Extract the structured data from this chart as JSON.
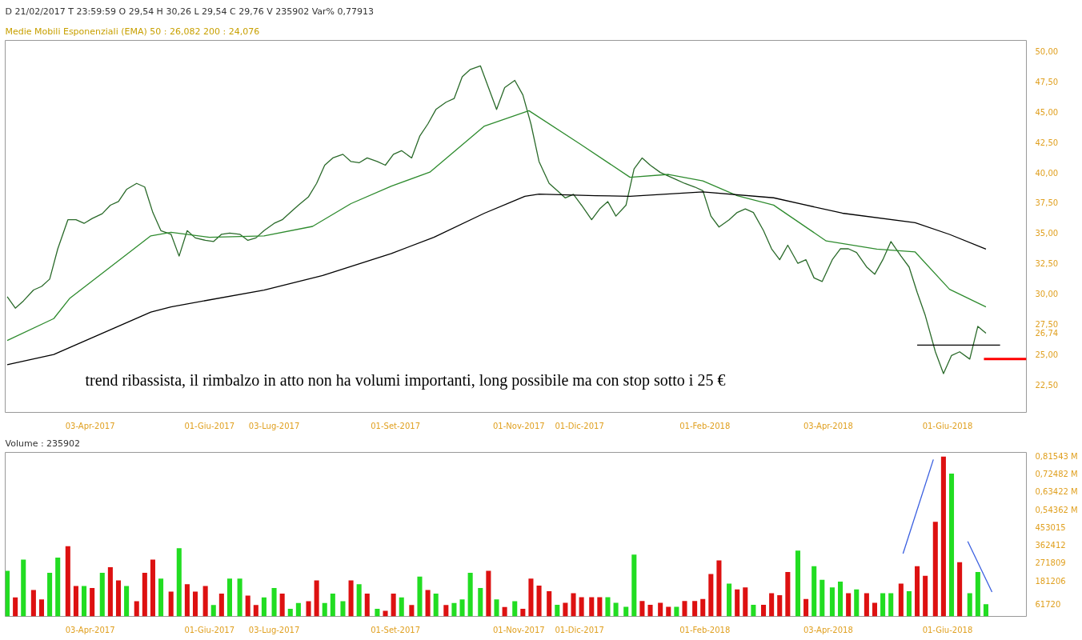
{
  "chart_data": [
    {
      "type": "line",
      "title": "D 21/02/2017  T 23:59:59  O 29,54  H 30,26  L 29,54  C 29,76  V 235902  Var% 0,77913",
      "subtitle": "Medie Mobili Esponenziali (EMA)     50 :  26,082     200 :  24,076",
      "x": [
        "2017-02-21",
        "2017-02-25",
        "2017-03-01",
        "2017-03-06",
        "2017-03-10",
        "2017-03-14",
        "2017-03-18",
        "2017-03-23",
        "2017-03-27",
        "2017-03-31",
        "2017-04-04",
        "2017-04-09",
        "2017-04-13",
        "2017-04-17",
        "2017-04-21",
        "2017-04-26",
        "2017-04-30",
        "2017-05-04",
        "2017-05-08",
        "2017-05-13",
        "2017-05-17",
        "2017-05-21",
        "2017-05-25",
        "2017-05-30",
        "2017-06-03",
        "2017-06-07",
        "2017-06-11",
        "2017-06-16",
        "2017-06-20",
        "2017-06-24",
        "2017-06-28",
        "2017-07-03",
        "2017-07-07",
        "2017-07-11",
        "2017-07-15",
        "2017-07-20",
        "2017-07-24",
        "2017-07-28",
        "2017-08-01",
        "2017-08-06",
        "2017-08-10",
        "2017-08-14",
        "2017-08-18",
        "2017-08-23",
        "2017-08-27",
        "2017-08-31",
        "2017-09-04",
        "2017-09-09",
        "2017-09-13",
        "2017-09-17",
        "2017-09-21",
        "2017-09-26",
        "2017-09-30",
        "2017-10-04",
        "2017-10-08",
        "2017-10-13",
        "2017-10-17",
        "2017-10-21",
        "2017-10-25",
        "2017-10-30",
        "2017-11-03",
        "2017-11-07",
        "2017-11-11",
        "2017-11-16",
        "2017-11-20",
        "2017-11-24",
        "2017-11-28",
        "2017-12-02",
        "2017-12-07",
        "2017-12-11",
        "2017-12-15",
        "2017-12-19",
        "2017-12-24",
        "2017-12-28",
        "2018-01-01",
        "2018-01-05",
        "2018-01-10",
        "2018-01-14",
        "2018-01-18",
        "2018-01-22",
        "2018-01-27",
        "2018-01-31",
        "2018-02-04",
        "2018-02-08",
        "2018-02-13",
        "2018-02-17",
        "2018-02-21",
        "2018-02-25",
        "2018-03-02",
        "2018-03-06",
        "2018-03-10",
        "2018-03-14",
        "2018-03-19",
        "2018-03-23",
        "2018-03-27",
        "2018-03-31",
        "2018-04-05",
        "2018-04-09",
        "2018-04-13",
        "2018-04-17",
        "2018-04-22",
        "2018-04-26",
        "2018-04-30",
        "2018-05-04",
        "2018-05-09",
        "2018-05-13",
        "2018-05-17",
        "2018-05-21",
        "2018-05-26",
        "2018-05-30",
        "2018-06-03",
        "2018-06-07",
        "2018-06-12",
        "2018-06-16",
        "2018-06-20"
      ],
      "xlim": [
        "2017-02-20",
        "2018-07-10"
      ],
      "xticks": [
        {
          "value": "2017-04-03",
          "label": "03-Apr-2017"
        },
        {
          "value": "2017-06-01",
          "label": "01-Giu-2017"
        },
        {
          "value": "2017-07-03",
          "label": "03-Lug-2017"
        },
        {
          "value": "2017-09-01",
          "label": "01-Set-2017"
        },
        {
          "value": "2017-11-01",
          "label": "01-Nov-2017"
        },
        {
          "value": "2017-12-01",
          "label": "01-Dic-2017"
        },
        {
          "value": "2018-02-01",
          "label": "01-Feb-2018"
        },
        {
          "value": "2018-04-03",
          "label": "03-Apr-2018"
        },
        {
          "value": "2018-06-01",
          "label": "01-Giu-2018"
        }
      ],
      "ylim": [
        20.2,
        50.9
      ],
      "yticks": [
        {
          "value": 22.5,
          "label": "22,50"
        },
        {
          "value": 25,
          "label": "25,00"
        },
        {
          "value": 26.74,
          "label": "26,74"
        },
        {
          "value": 27.5,
          "label": "27,50"
        },
        {
          "value": 30,
          "label": "30,00"
        },
        {
          "value": 32.5,
          "label": "32,50"
        },
        {
          "value": 35,
          "label": "35,00"
        },
        {
          "value": 37.5,
          "label": "37,50"
        },
        {
          "value": 40,
          "label": "40,00"
        },
        {
          "value": 42.5,
          "label": "42,50"
        },
        {
          "value": 45,
          "label": "45,00"
        },
        {
          "value": 47.5,
          "label": "47,50"
        },
        {
          "value": 50,
          "label": "50,00"
        }
      ],
      "series": [
        {
          "color": "#2a6a2a",
          "values": [
            29.75,
            28.8,
            29.4,
            30.3,
            30.6,
            31.2,
            33.7,
            36.1,
            36.1,
            35.8,
            36.2,
            36.6,
            37.3,
            37.6,
            38.6,
            39.1,
            38.8,
            36.7,
            35.2,
            34.9,
            33.1,
            35.2,
            34.6,
            34.4,
            34.3,
            34.9,
            35.0,
            34.9,
            34.4,
            34.6,
            35.2,
            35.8,
            36.1,
            36.7,
            37.3,
            38.0,
            39.1,
            40.6,
            41.2,
            41.5,
            40.9,
            40.8,
            41.2,
            40.9,
            40.6,
            41.5,
            41.8,
            41.2,
            43.0,
            44.0,
            45.2,
            45.8,
            46.1,
            47.9,
            48.5,
            48.8,
            47.0,
            45.2,
            47.0,
            47.6,
            46.4,
            44.0,
            40.9,
            39.1,
            38.5,
            37.9,
            38.2,
            37.3,
            36.1,
            37.0,
            37.6,
            36.4,
            37.3,
            40.3,
            41.2,
            40.6,
            40.0,
            39.7,
            39.4,
            39.1,
            38.8,
            38.5,
            36.4,
            35.5,
            36.1,
            36.7,
            37.0,
            36.7,
            35.2,
            33.7,
            32.8,
            34.0,
            32.5,
            32.8,
            31.3,
            31.0,
            32.8,
            33.7,
            33.7,
            33.4,
            32.2,
            31.6,
            32.8,
            34.3,
            33.1,
            32.2,
            30.1,
            28.2,
            25.2,
            23.4,
            24.9,
            25.2,
            24.6,
            27.3,
            26.74
          ]
        },
        {
          "color": "#2e8b2e",
          "x": [
            "2017-02-21",
            "2017-03-16",
            "2017-03-24",
            "2017-05-03",
            "2017-05-13",
            "2017-06-01",
            "2017-06-28",
            "2017-07-22",
            "2017-08-10",
            "2017-08-30",
            "2017-09-18",
            "2017-10-15",
            "2017-11-06",
            "2017-12-01",
            "2017-12-26",
            "2018-01-14",
            "2018-01-31",
            "2018-02-17",
            "2018-03-07",
            "2018-04-02",
            "2018-04-27",
            "2018-05-16",
            "2018-06-02",
            "2018-06-20"
          ],
          "values": [
            26.13,
            27.94,
            29.63,
            34.77,
            35.07,
            34.65,
            34.77,
            35.55,
            37.43,
            38.88,
            40.03,
            43.83,
            45.1,
            42.38,
            39.6,
            39.84,
            39.3,
            38.09,
            37.31,
            34.35,
            33.68,
            33.44,
            30.36,
            28.91
          ]
        },
        {
          "color": "#000000",
          "x": [
            "2017-02-21",
            "2017-03-16",
            "2017-05-03",
            "2017-05-13",
            "2017-06-28",
            "2017-07-27",
            "2017-08-30",
            "2017-09-20",
            "2017-10-15",
            "2017-11-04",
            "2017-11-11",
            "2017-12-09",
            "2017-12-26",
            "2018-01-31",
            "2018-03-07",
            "2018-04-10",
            "2018-05-16",
            "2018-06-02",
            "2018-06-20"
          ],
          "values": [
            24.13,
            24.98,
            28.48,
            28.91,
            30.3,
            31.5,
            33.32,
            34.65,
            36.64,
            38.03,
            38.21,
            38.09,
            38.03,
            38.4,
            37.91,
            36.64,
            35.86,
            34.89,
            33.68
          ]
        },
        {
          "color": "#000000",
          "x": [
            "2018-05-17",
            "2018-06-27"
          ],
          "values": [
            25.76,
            25.76
          ]
        },
        {
          "color": "#ff0000",
          "x": [
            "2018-06-19",
            "2018-07-10"
          ],
          "values": [
            24.6,
            24.6
          ]
        }
      ],
      "annotations": [
        "trend ribassista, il rimbalzo in atto non ha volumi importanti, long possibile ma con stop sotto i 25 €"
      ]
    },
    {
      "type": "bar",
      "title": "Volume     :  235902",
      "x": [
        "2017-02-21",
        "2017-02-25",
        "2017-03-01",
        "2017-03-06",
        "2017-03-10",
        "2017-03-14",
        "2017-03-18",
        "2017-03-23",
        "2017-03-27",
        "2017-03-31",
        "2017-04-04",
        "2017-04-09",
        "2017-04-13",
        "2017-04-17",
        "2017-04-21",
        "2017-04-26",
        "2017-04-30",
        "2017-05-04",
        "2017-05-08",
        "2017-05-13",
        "2017-05-17",
        "2017-05-21",
        "2017-05-25",
        "2017-05-30",
        "2017-06-03",
        "2017-06-07",
        "2017-06-11",
        "2017-06-16",
        "2017-06-20",
        "2017-06-24",
        "2017-06-28",
        "2017-07-03",
        "2017-07-07",
        "2017-07-11",
        "2017-07-15",
        "2017-07-20",
        "2017-07-24",
        "2017-07-28",
        "2017-08-01",
        "2017-08-06",
        "2017-08-10",
        "2017-08-14",
        "2017-08-18",
        "2017-08-23",
        "2017-08-27",
        "2017-08-31",
        "2017-09-04",
        "2017-09-09",
        "2017-09-13",
        "2017-09-17",
        "2017-09-21",
        "2017-09-26",
        "2017-09-30",
        "2017-10-04",
        "2017-10-08",
        "2017-10-13",
        "2017-10-17",
        "2017-10-21",
        "2017-10-25",
        "2017-10-30",
        "2017-11-03",
        "2017-11-07",
        "2017-11-11",
        "2017-11-16",
        "2017-11-20",
        "2017-11-24",
        "2017-11-28",
        "2017-12-02",
        "2017-12-07",
        "2017-12-11",
        "2017-12-15",
        "2017-12-19",
        "2017-12-24",
        "2017-12-28",
        "2018-01-01",
        "2018-01-05",
        "2018-01-10",
        "2018-01-14",
        "2018-01-18",
        "2018-01-22",
        "2018-01-27",
        "2018-01-31",
        "2018-02-04",
        "2018-02-08",
        "2018-02-13",
        "2018-02-17",
        "2018-02-21",
        "2018-02-25",
        "2018-03-02",
        "2018-03-06",
        "2018-03-10",
        "2018-03-14",
        "2018-03-19",
        "2018-03-23",
        "2018-03-27",
        "2018-03-31",
        "2018-04-05",
        "2018-04-09",
        "2018-04-13",
        "2018-04-17",
        "2018-04-22",
        "2018-04-26",
        "2018-04-30",
        "2018-05-04",
        "2018-05-09",
        "2018-05-13",
        "2018-05-17",
        "2018-05-21",
        "2018-05-26",
        "2018-05-30",
        "2018-06-03",
        "2018-06-07",
        "2018-06-12",
        "2018-06-16",
        "2018-06-20"
      ],
      "xlim": [
        "2017-02-20",
        "2018-07-10"
      ],
      "xticks": [
        {
          "value": "2017-04-03",
          "label": "03-Apr-2017"
        },
        {
          "value": "2017-06-01",
          "label": "01-Giu-2017"
        },
        {
          "value": "2017-07-03",
          "label": "03-Lug-2017"
        },
        {
          "value": "2017-09-01",
          "label": "01-Set-2017"
        },
        {
          "value": "2017-11-01",
          "label": "01-Nov-2017"
        },
        {
          "value": "2017-12-01",
          "label": "01-Dic-2017"
        },
        {
          "value": "2018-02-01",
          "label": "01-Feb-2018"
        },
        {
          "value": "2018-04-03",
          "label": "03-Apr-2018"
        },
        {
          "value": "2018-06-01",
          "label": "01-Giu-2018"
        }
      ],
      "ylim": [
        0,
        836000
      ],
      "yticks": [
        {
          "value": 61720,
          "label": "61720"
        },
        181206,
        271809,
        362412,
        453015,
        {
          "value": 543618,
          "label": "0,54362 M"
        },
        {
          "value": 634221,
          "label": "0,63422 M"
        },
        {
          "value": 724824,
          "label": "0,72482 M"
        },
        {
          "value": 815427,
          "label": "0,81543 M"
        }
      ],
      "series": [
        {
          "type": "bar",
          "values": [
            232000,
            97000,
            290000,
            135000,
            87000,
            222000,
            300000,
            358000,
            155000,
            155000,
            145000,
            222000,
            251000,
            184000,
            155000,
            77000,
            222000,
            290000,
            193000,
            126000,
            348000,
            164000,
            126000,
            155000,
            58000,
            116000,
            193000,
            193000,
            106000,
            58000,
            97000,
            145000,
            116000,
            39000,
            68000,
            77000,
            184000,
            68000,
            116000,
            77000,
            184000,
            164000,
            116000,
            39000,
            29000,
            116000,
            97000,
            58000,
            203000,
            135000,
            116000,
            58000,
            68000,
            87000,
            222000,
            145000,
            232000,
            87000,
            48000,
            77000,
            39000,
            193000,
            157000,
            128000,
            59000,
            69000,
            118000,
            98000,
            98000,
            98000,
            98000,
            69000,
            49000,
            315000,
            79000,
            59000,
            69000,
            49000,
            49000,
            79000,
            79000,
            89000,
            216000,
            285000,
            167000,
            138000,
            148000,
            59000,
            59000,
            118000,
            108000,
            226000,
            335000,
            89000,
            256000,
            187000,
            148000,
            177000,
            118000,
            138000,
            118000,
            69000,
            118000,
            118000,
            167000,
            128000,
            256000,
            207000,
            482000,
            815000,
            728000,
            276000,
            118000,
            226000,
            61720
          ],
          "colors": [
            "#22dd22",
            "#dd1111",
            "#22dd22",
            "#dd1111",
            "#dd1111",
            "#22dd22",
            "#22dd22",
            "#dd1111",
            "#dd1111",
            "#22dd22",
            "#dd1111",
            "#22dd22",
            "#dd1111",
            "#dd1111",
            "#22dd22",
            "#dd1111",
            "#dd1111",
            "#dd1111",
            "#22dd22",
            "#dd1111",
            "#22dd22",
            "#dd1111",
            "#dd1111",
            "#dd1111",
            "#22dd22",
            "#dd1111",
            "#22dd22",
            "#22dd22",
            "#dd1111",
            "#dd1111",
            "#22dd22",
            "#22dd22",
            "#dd1111",
            "#22dd22",
            "#22dd22",
            "#dd1111",
            "#dd1111",
            "#22dd22",
            "#22dd22",
            "#22dd22",
            "#dd1111",
            "#22dd22",
            "#dd1111",
            "#22dd22",
            "#dd1111",
            "#dd1111",
            "#22dd22",
            "#dd1111",
            "#22dd22",
            "#dd1111",
            "#22dd22",
            "#dd1111",
            "#22dd22",
            "#22dd22",
            "#22dd22",
            "#22dd22",
            "#dd1111",
            "#22dd22",
            "#dd1111",
            "#22dd22",
            "#dd1111",
            "#dd1111",
            "#dd1111",
            "#dd1111",
            "#22dd22",
            "#dd1111",
            "#dd1111",
            "#dd1111",
            "#dd1111",
            "#dd1111",
            "#22dd22",
            "#22dd22",
            "#22dd22",
            "#22dd22",
            "#dd1111",
            "#dd1111",
            "#dd1111",
            "#dd1111",
            "#22dd22",
            "#dd1111",
            "#dd1111",
            "#dd1111",
            "#dd1111",
            "#dd1111",
            "#22dd22",
            "#dd1111",
            "#dd1111",
            "#22dd22",
            "#dd1111",
            "#dd1111",
            "#dd1111",
            "#dd1111",
            "#22dd22",
            "#dd1111",
            "#22dd22",
            "#22dd22",
            "#22dd22",
            "#22dd22",
            "#dd1111",
            "#22dd22",
            "#dd1111",
            "#dd1111",
            "#22dd22",
            "#22dd22",
            "#dd1111",
            "#22dd22",
            "#dd1111",
            "#dd1111",
            "#dd1111",
            "#dd1111",
            "#22dd22",
            "#dd1111",
            "#22dd22",
            "#22dd22",
            "#22dd22"
          ]
        },
        {
          "type": "line",
          "color": "#3a5fe0",
          "x": [
            "2018-05-10",
            "2018-05-25"
          ],
          "values": [
            320000,
            800000
          ]
        },
        {
          "type": "line",
          "color": "#3a5fe0",
          "x": [
            "2018-06-11",
            "2018-06-23"
          ],
          "values": [
            382000,
            124000
          ]
        }
      ]
    }
  ]
}
